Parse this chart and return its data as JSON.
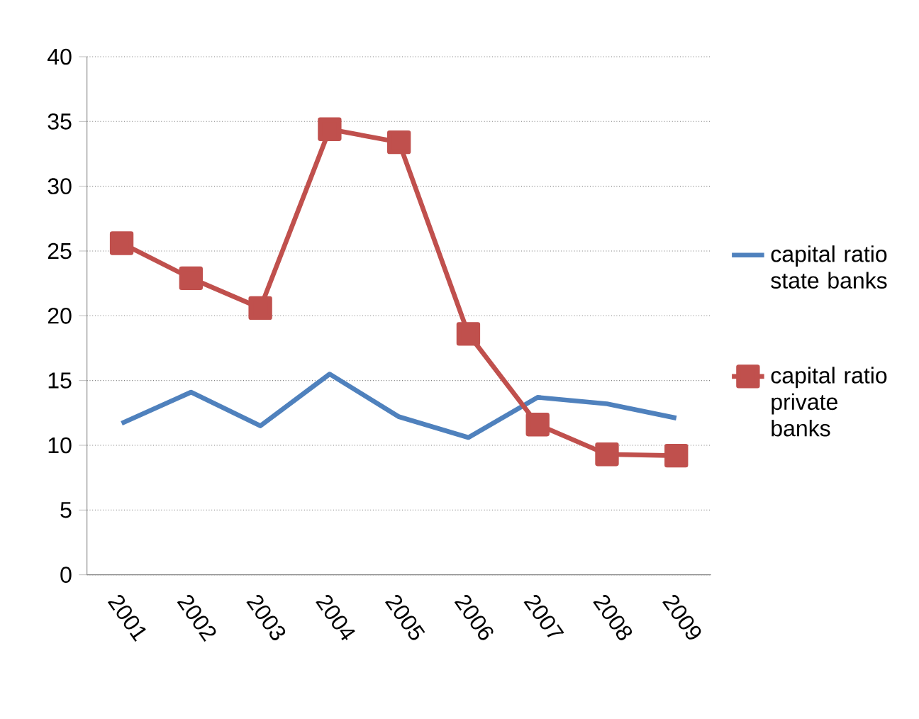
{
  "chart_data": {
    "type": "line",
    "categories": [
      "2001",
      "2002",
      "2003",
      "2004",
      "2005",
      "2006",
      "2007",
      "2008",
      "2009"
    ],
    "series": [
      {
        "name": "capital ratio state banks",
        "color": "#4f81bd",
        "values": [
          11.7,
          14.1,
          11.5,
          15.5,
          12.2,
          10.6,
          13.7,
          13.2,
          12.1
        ]
      },
      {
        "name": "capital ratio private banks",
        "color": "#c0504d",
        "marker": "square",
        "values": [
          25.6,
          22.9,
          20.6,
          34.4,
          33.4,
          18.6,
          11.6,
          9.3,
          9.2
        ]
      }
    ],
    "ylim": [
      0,
      40
    ],
    "yticks": [
      0,
      5,
      10,
      15,
      20,
      25,
      30,
      35,
      40
    ],
    "grid": "y",
    "legend": "right"
  }
}
